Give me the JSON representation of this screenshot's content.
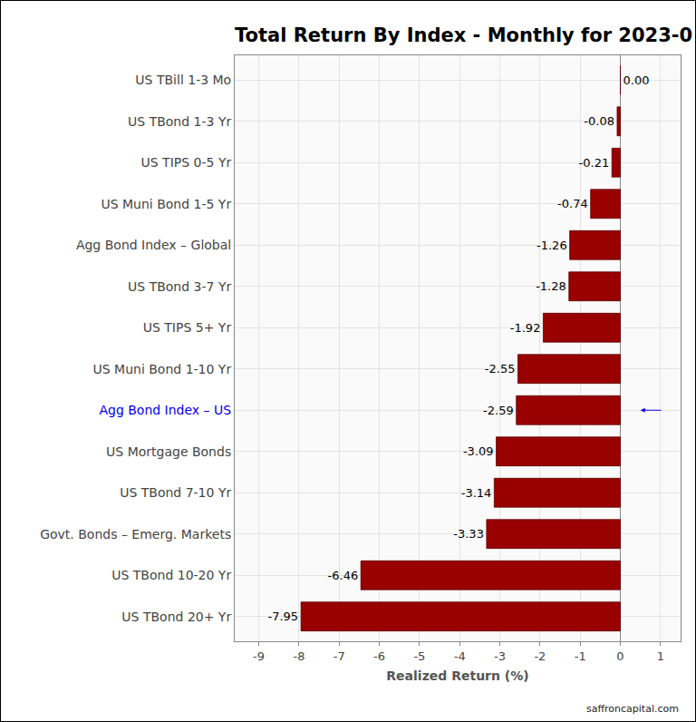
{
  "chart_data": {
    "type": "bar",
    "orientation": "horizontal",
    "title": "Total Return By Index - Monthly for 2023-0",
    "x_label": "Realized Return (%)",
    "source": "saffroncapital.com",
    "categories": [
      "US TBill 1-3 Mo",
      "US TBond 1-3 Yr",
      "US TIPS 0-5 Yr",
      "US Muni Bond 1-5 Yr",
      "Agg Bond Index – Global",
      "US TBond 3-7 Yr",
      "US TIPS 5+ Yr",
      "US Muni Bond 1-10 Yr",
      "Agg Bond Index – US",
      "US Mortgage Bonds",
      "US TBond 7-10 Yr",
      "Govt. Bonds – Emerg. Markets",
      "US TBond 10-20 Yr",
      "US TBond 20+ Yr"
    ],
    "values": [
      0.0,
      -0.08,
      -0.21,
      -0.74,
      -1.26,
      -1.28,
      -1.92,
      -2.55,
      -2.59,
      -3.09,
      -3.14,
      -3.33,
      -6.46,
      -7.95
    ],
    "value_labels": [
      "0.00",
      "-0.08",
      "-0.21",
      "-0.74",
      "-1.26",
      "-1.28",
      "-1.92",
      "-2.55",
      "-2.59",
      "-3.09",
      "-3.14",
      "-3.33",
      "-6.46",
      "-7.95"
    ],
    "color": "#990000",
    "data_labels": true,
    "grid": true,
    "xlim": [
      -9.6,
      1.5
    ],
    "xticks": [
      -9,
      -8,
      -7,
      -6,
      -5,
      -4,
      -3,
      -2,
      -1,
      0,
      1
    ]
  }
}
